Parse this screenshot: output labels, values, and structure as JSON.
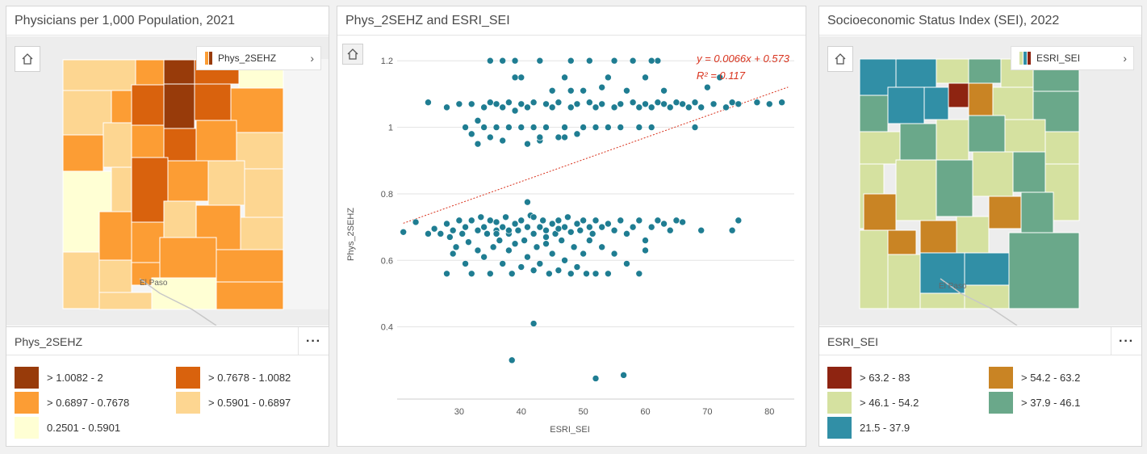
{
  "left_panel": {
    "title": "Physicians per 1,000 Population, 2021",
    "legend_chip_label": "Phys_2SEHZ",
    "legend_header": "Phys_2SEHZ",
    "basemap_label": "El Paso",
    "legend": [
      {
        "label": "> 1.0082 - 2",
        "color": "#983b0a"
      },
      {
        "label": "> 0.7678 - 1.0082",
        "color": "#d9620d"
      },
      {
        "label": "> 0.6897 - 0.7678",
        "color": "#fc9d34"
      },
      {
        "label": "> 0.5901 - 0.6897",
        "color": "#fdd691"
      },
      {
        "label": "0.2501 - 0.5901",
        "color": "#ffffd4"
      }
    ]
  },
  "middle_panel": {
    "title": "Phys_2SEHZ and ESRI_SEI",
    "regression_line1": "y = 0.0066x + 0.573",
    "regression_line2": "R² = 0.117"
  },
  "right_panel": {
    "title": "Socioeconomic Status Index (SEI), 2022",
    "legend_chip_label": "ESRI_SEI",
    "legend_header": "ESRI_SEI",
    "basemap_label": "El Paso",
    "legend": [
      {
        "label": "> 63.2 - 83",
        "color": "#8e2411"
      },
      {
        "label": "> 54.2 - 63.2",
        "color": "#c98424"
      },
      {
        "label": "> 46.1 - 54.2",
        "color": "#d5e1a0"
      },
      {
        "label": "> 37.9 - 46.1",
        "color": "#6aa88a"
      },
      {
        "label": "21.5 - 37.9",
        "color": "#318fa6"
      }
    ]
  },
  "icons": {
    "home": "home-icon",
    "more": "more-options-icon",
    "chevron": "chevron-right-icon"
  },
  "chart_data": {
    "type": "scatter",
    "xlabel": "ESRI_SEI",
    "ylabel": "Phys_2SEHZ",
    "xlim": [
      20,
      84
    ],
    "ylim": [
      0.2,
      1.22
    ],
    "xticks": [
      30,
      40,
      50,
      60,
      70,
      80
    ],
    "yticks": [
      0.4,
      0.6,
      0.8,
      1,
      1.2
    ],
    "point_color": "#1f7d92",
    "trendline": {
      "slope": 0.0066,
      "intercept": 0.573,
      "color": "#d9341f"
    },
    "points": [
      [
        21,
        0.685
      ],
      [
        23,
        0.715
      ],
      [
        25,
        0.68
      ],
      [
        26,
        0.695
      ],
      [
        27,
        0.68
      ],
      [
        28,
        0.71
      ],
      [
        28,
        0.56
      ],
      [
        28.5,
        0.67
      ],
      [
        29,
        0.69
      ],
      [
        29.5,
        0.64
      ],
      [
        29,
        0.62
      ],
      [
        30,
        0.72
      ],
      [
        30.5,
        0.68
      ],
      [
        31,
        0.7
      ],
      [
        31,
        0.59
      ],
      [
        31.5,
        0.655
      ],
      [
        32,
        0.72
      ],
      [
        32,
        0.56
      ],
      [
        33,
        0.69
      ],
      [
        33,
        0.63
      ],
      [
        33.5,
        0.73
      ],
      [
        34,
        0.7
      ],
      [
        34,
        0.61
      ],
      [
        34.5,
        0.68
      ],
      [
        35,
        0.72
      ],
      [
        35,
        0.56
      ],
      [
        35.5,
        0.64
      ],
      [
        36,
        0.69
      ],
      [
        36,
        0.715
      ],
      [
        36.5,
        0.66
      ],
      [
        37,
        0.7
      ],
      [
        37,
        0.59
      ],
      [
        37.5,
        0.73
      ],
      [
        38,
        0.68
      ],
      [
        38,
        0.63
      ],
      [
        38.5,
        0.56
      ],
      [
        39,
        0.71
      ],
      [
        39,
        0.65
      ],
      [
        39.5,
        0.69
      ],
      [
        40,
        0.72
      ],
      [
        40,
        0.58
      ],
      [
        40.5,
        0.66
      ],
      [
        41,
        0.7
      ],
      [
        41,
        0.61
      ],
      [
        41.5,
        0.735
      ],
      [
        42,
        0.68
      ],
      [
        42,
        0.57
      ],
      [
        42.5,
        0.64
      ],
      [
        43,
        0.7
      ],
      [
        43,
        0.59
      ],
      [
        43.5,
        0.72
      ],
      [
        44,
        0.69
      ],
      [
        44,
        0.65
      ],
      [
        44.5,
        0.56
      ],
      [
        45,
        0.71
      ],
      [
        45,
        0.62
      ],
      [
        45.5,
        0.68
      ],
      [
        46,
        0.72
      ],
      [
        46,
        0.57
      ],
      [
        46.5,
        0.66
      ],
      [
        47,
        0.7
      ],
      [
        47,
        0.6
      ],
      [
        47.5,
        0.73
      ],
      [
        48,
        0.685
      ],
      [
        48,
        0.56
      ],
      [
        48.5,
        0.64
      ],
      [
        49,
        0.71
      ],
      [
        49,
        0.58
      ],
      [
        49.5,
        0.69
      ],
      [
        50,
        0.72
      ],
      [
        50,
        0.62
      ],
      [
        50.5,
        0.56
      ],
      [
        51,
        0.7
      ],
      [
        51,
        0.66
      ],
      [
        51.5,
        0.68
      ],
      [
        52,
        0.72
      ],
      [
        52,
        0.56
      ],
      [
        53,
        0.7
      ],
      [
        53,
        0.64
      ],
      [
        54,
        0.71
      ],
      [
        54,
        0.56
      ],
      [
        55,
        0.69
      ],
      [
        55,
        0.62
      ],
      [
        56,
        0.72
      ],
      [
        57,
        0.68
      ],
      [
        57,
        0.59
      ],
      [
        58,
        0.7
      ],
      [
        59,
        0.72
      ],
      [
        59,
        0.56
      ],
      [
        60,
        0.66
      ],
      [
        60,
        0.63
      ],
      [
        61,
        0.7
      ],
      [
        62,
        0.72
      ],
      [
        63,
        0.71
      ],
      [
        64,
        0.69
      ],
      [
        65,
        0.72
      ],
      [
        66,
        0.715
      ],
      [
        69,
        0.69
      ],
      [
        74,
        0.69
      ],
      [
        75,
        0.72
      ],
      [
        44,
        0.67
      ],
      [
        38,
        0.69
      ],
      [
        36,
        0.68
      ],
      [
        42,
        0.73
      ],
      [
        41,
        0.775
      ],
      [
        46,
        0.695
      ],
      [
        25,
        1.075
      ],
      [
        28,
        1.06
      ],
      [
        30,
        1.07
      ],
      [
        31,
        1.0
      ],
      [
        32,
        0.98
      ],
      [
        32,
        1.07
      ],
      [
        33,
        1.02
      ],
      [
        33,
        0.95
      ],
      [
        34,
        1.06
      ],
      [
        34,
        1.0
      ],
      [
        35,
        1.075
      ],
      [
        35,
        0.97
      ],
      [
        36,
        1.0
      ],
      [
        36,
        1.07
      ],
      [
        37,
        1.06
      ],
      [
        37,
        0.96
      ],
      [
        38,
        1.0
      ],
      [
        38,
        1.075
      ],
      [
        39,
        1.05
      ],
      [
        39,
        1.2
      ],
      [
        40,
        1.0
      ],
      [
        40,
        1.07
      ],
      [
        40,
        1.15
      ],
      [
        41,
        0.95
      ],
      [
        41,
        1.06
      ],
      [
        42,
        1.0
      ],
      [
        42,
        1.075
      ],
      [
        43,
        1.2
      ],
      [
        43,
        0.96
      ],
      [
        44,
        1.07
      ],
      [
        44,
        1.0
      ],
      [
        45,
        1.06
      ],
      [
        45,
        1.11
      ],
      [
        46,
        0.97
      ],
      [
        46,
        1.075
      ],
      [
        47,
        1.0
      ],
      [
        47,
        1.15
      ],
      [
        48,
        1.06
      ],
      [
        48,
        1.2
      ],
      [
        49,
        0.98
      ],
      [
        49,
        1.07
      ],
      [
        50,
        1.0
      ],
      [
        50,
        1.11
      ],
      [
        51,
        1.075
      ],
      [
        51,
        1.2
      ],
      [
        52,
        1.06
      ],
      [
        52,
        1.0
      ],
      [
        53,
        1.12
      ],
      [
        53,
        1.07
      ],
      [
        54,
        1.0
      ],
      [
        54,
        1.15
      ],
      [
        55,
        1.06
      ],
      [
        55,
        1.2
      ],
      [
        56,
        1.07
      ],
      [
        56,
        1.0
      ],
      [
        57,
        1.11
      ],
      [
        58,
        1.075
      ],
      [
        58,
        1.2
      ],
      [
        59,
        1.06
      ],
      [
        59,
        1.0
      ],
      [
        60,
        1.07
      ],
      [
        60,
        1.15
      ],
      [
        61,
        1.06
      ],
      [
        61,
        1.0
      ],
      [
        62,
        1.075
      ],
      [
        62,
        1.2
      ],
      [
        63,
        1.07
      ],
      [
        63,
        1.11
      ],
      [
        64,
        1.06
      ],
      [
        65,
        1.075
      ],
      [
        66,
        1.07
      ],
      [
        67,
        1.06
      ],
      [
        68,
        1.0
      ],
      [
        68,
        1.075
      ],
      [
        69,
        1.06
      ],
      [
        70,
        1.12
      ],
      [
        71,
        1.07
      ],
      [
        72,
        1.15
      ],
      [
        73,
        1.06
      ],
      [
        74,
        1.075
      ],
      [
        75,
        1.07
      ],
      [
        78,
        1.075
      ],
      [
        80,
        1.07
      ],
      [
        82,
        1.075
      ],
      [
        47,
        0.97
      ],
      [
        43,
        0.97
      ],
      [
        35,
        1.2
      ],
      [
        37,
        1.2
      ],
      [
        39,
        1.15
      ],
      [
        61,
        1.2
      ],
      [
        48,
        1.11
      ]
    ],
    "outliers": [
      [
        42,
        0.41
      ],
      [
        38.5,
        0.3
      ],
      [
        52,
        0.245
      ],
      [
        56.5,
        0.255
      ]
    ]
  }
}
